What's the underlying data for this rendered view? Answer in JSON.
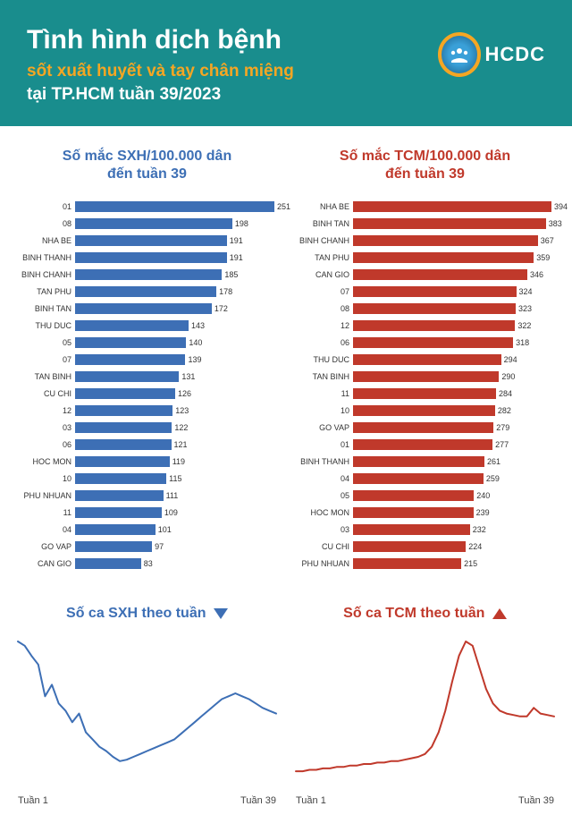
{
  "header": {
    "bg_color": "#198d8d",
    "title": "Tình hình dịch bệnh",
    "title_color": "#ffffff",
    "subtitle1": "sốt xuất huyết và tay chân miệng",
    "subtitle1_color": "#f5a623",
    "subtitle2": "tại TP.HCM tuần 39/2023",
    "logo_text": "HCDC",
    "logo_ring_color": "#f5a623",
    "logo_fill_color": "#3aa0d8"
  },
  "bar_left": {
    "title": "Số mắc SXH/100.000 dân\nđến tuần 39",
    "color": "#3d6fb5",
    "max": 260,
    "items": [
      {
        "label": "01",
        "value": 251
      },
      {
        "label": "08",
        "value": 198
      },
      {
        "label": "NHA BE",
        "value": 191
      },
      {
        "label": "BINH THANH",
        "value": 191
      },
      {
        "label": "BINH CHANH",
        "value": 185
      },
      {
        "label": "TAN PHU",
        "value": 178
      },
      {
        "label": "BINH TAN",
        "value": 172
      },
      {
        "label": "THU DUC",
        "value": 143
      },
      {
        "label": "05",
        "value": 140
      },
      {
        "label": "07",
        "value": 139
      },
      {
        "label": "TAN BINH",
        "value": 131
      },
      {
        "label": "CU CHI",
        "value": 126
      },
      {
        "label": "12",
        "value": 123
      },
      {
        "label": "03",
        "value": 122
      },
      {
        "label": "06",
        "value": 121
      },
      {
        "label": "HOC MON",
        "value": 119
      },
      {
        "label": "10",
        "value": 115
      },
      {
        "label": "PHU NHUAN",
        "value": 111
      },
      {
        "label": "11",
        "value": 109
      },
      {
        "label": "04",
        "value": 101
      },
      {
        "label": "GO VAP",
        "value": 97
      },
      {
        "label": "CAN GIO",
        "value": 83
      }
    ]
  },
  "bar_right": {
    "title": "Số mắc TCM/100.000 dân\nđến tuần 39",
    "color": "#c0392b",
    "max": 410,
    "items": [
      {
        "label": "NHA BE",
        "value": 394
      },
      {
        "label": "BINH TAN",
        "value": 383
      },
      {
        "label": "BINH CHANH",
        "value": 367
      },
      {
        "label": "TAN PHU",
        "value": 359
      },
      {
        "label": "CAN GIO",
        "value": 346
      },
      {
        "label": "07",
        "value": 324
      },
      {
        "label": "08",
        "value": 323
      },
      {
        "label": "12",
        "value": 322
      },
      {
        "label": "06",
        "value": 318
      },
      {
        "label": "THU DUC",
        "value": 294
      },
      {
        "label": "TAN BINH",
        "value": 290
      },
      {
        "label": "11",
        "value": 284
      },
      {
        "label": "10",
        "value": 282
      },
      {
        "label": "GO VAP",
        "value": 279
      },
      {
        "label": "01",
        "value": 277
      },
      {
        "label": "BINH THANH",
        "value": 261
      },
      {
        "label": "04",
        "value": 259
      },
      {
        "label": "05",
        "value": 240
      },
      {
        "label": "HOC MON",
        "value": 239
      },
      {
        "label": "03",
        "value": 232
      },
      {
        "label": "CU CHI",
        "value": 224
      },
      {
        "label": "PHU NHUAN",
        "value": 215
      }
    ]
  },
  "line_left": {
    "title": "Số ca SXH theo tuần",
    "trend": "down",
    "trend_color": "#3d6fb5",
    "color": "#3d6fb5",
    "x_start": "Tuần 1",
    "x_end": "Tuần 39",
    "line_width": 2,
    "values": [
      98,
      95,
      88,
      82,
      60,
      68,
      55,
      50,
      42,
      48,
      35,
      30,
      25,
      22,
      18,
      15,
      16,
      18,
      20,
      22,
      24,
      26,
      28,
      30,
      34,
      38,
      42,
      46,
      50,
      54,
      58,
      60,
      62,
      60,
      58,
      55,
      52,
      50,
      48
    ]
  },
  "line_right": {
    "title": "Số ca TCM theo tuần",
    "trend": "up",
    "trend_color": "#c0392b",
    "color": "#c0392b",
    "x_start": "Tuần 1",
    "x_end": "Tuần 39",
    "line_width": 2,
    "values": [
      8,
      8,
      9,
      9,
      10,
      10,
      11,
      11,
      12,
      12,
      13,
      13,
      14,
      14,
      15,
      15,
      16,
      17,
      18,
      20,
      25,
      35,
      50,
      70,
      88,
      98,
      95,
      80,
      65,
      55,
      50,
      48,
      47,
      46,
      46,
      52,
      48,
      47,
      46
    ]
  }
}
